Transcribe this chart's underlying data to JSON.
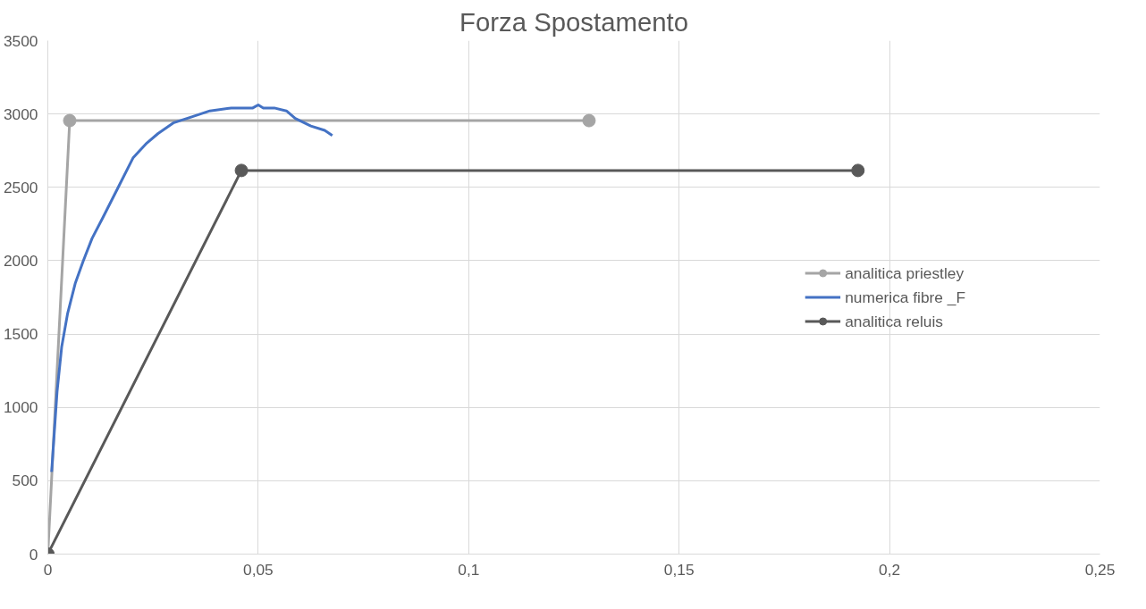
{
  "chart_data": {
    "type": "line",
    "title": "Forza Spostamento",
    "xlim": [
      0,
      0.25
    ],
    "ylim": [
      0,
      3500
    ],
    "xticks": [
      0,
      {
        "value": 0.05,
        "label": "0,05"
      },
      {
        "value": 0.1,
        "label": "0,1"
      },
      {
        "value": 0.15,
        "label": "0,15"
      },
      {
        "value": 0.2,
        "label": "0,2"
      },
      {
        "value": 0.25,
        "label": "0,25"
      }
    ],
    "yticks": [
      0,
      500,
      1000,
      1500,
      2000,
      2500,
      3000,
      3500
    ],
    "grid": true,
    "legend": "right",
    "line_style": "solid",
    "series": [
      {
        "name": "analitica priestley",
        "color": "#a5a5a5",
        "marker": "circle",
        "x": [
          0,
          0.0052,
          0.1286
        ],
        "values": [
          0,
          2955,
          2955
        ]
      },
      {
        "name": "numerica fibre _F",
        "color": "#4472c4",
        "marker": "none",
        "x": [
          0.0009,
          0.0022,
          0.0033,
          0.0047,
          0.0065,
          0.0084,
          0.0105,
          0.0131,
          0.0167,
          0.0203,
          0.0233,
          0.0262,
          0.0298,
          0.0342,
          0.0385,
          0.0436,
          0.0487,
          0.05,
          0.0512,
          0.0538,
          0.0567,
          0.0588,
          0.0625,
          0.0658,
          0.0676
        ],
        "values": [
          560,
          1107,
          1414,
          1640,
          1844,
          1997,
          2151,
          2295,
          2499,
          2703,
          2796,
          2867,
          2939,
          2980,
          3021,
          3041,
          3041,
          3062,
          3041,
          3041,
          3021,
          2970,
          2918,
          2888,
          2853
        ]
      },
      {
        "name": "analitica reluis",
        "color": "#595959",
        "marker": "circle",
        "x": [
          0,
          0.046,
          0.1925
        ],
        "values": [
          0,
          2615,
          2615
        ]
      }
    ]
  }
}
